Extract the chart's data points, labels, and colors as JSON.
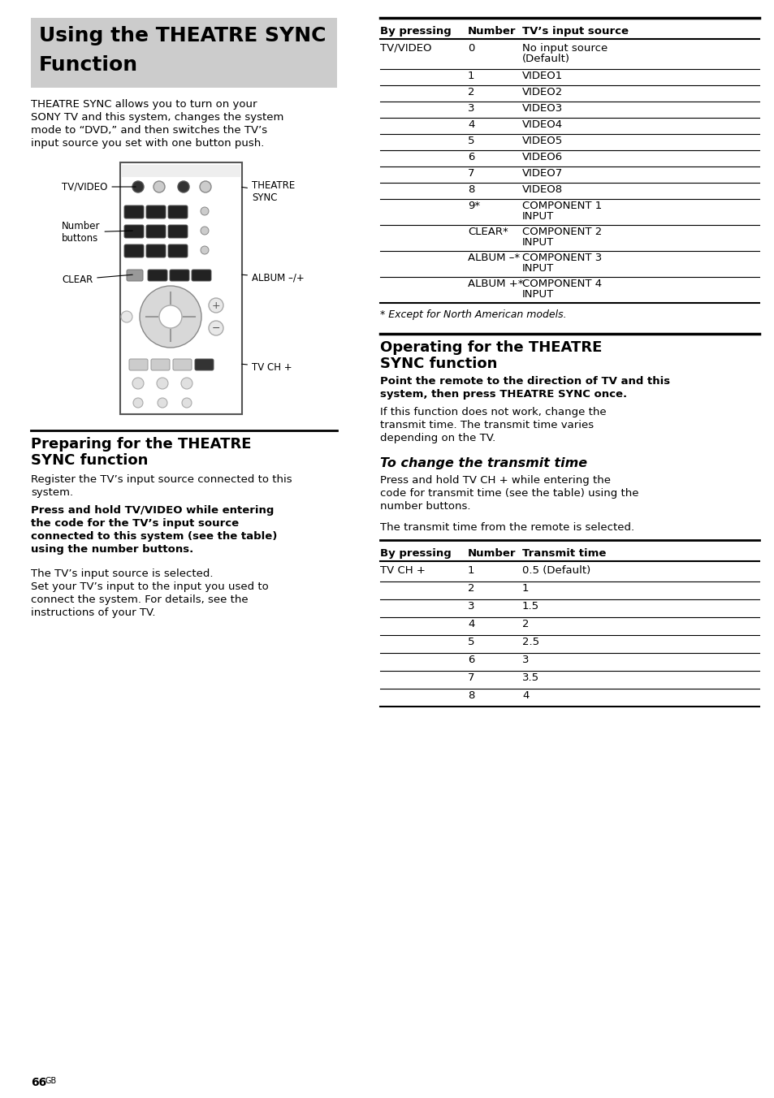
{
  "page_bg": "#ffffff",
  "title_bg": "#cccccc",
  "page_number": "66",
  "table1_rows": [
    [
      "TV/VIDEO",
      "0",
      "No input source\n(Default)"
    ],
    [
      "",
      "1",
      "VIDEO1"
    ],
    [
      "",
      "2",
      "VIDEO2"
    ],
    [
      "",
      "3",
      "VIDEO3"
    ],
    [
      "",
      "4",
      "VIDEO4"
    ],
    [
      "",
      "5",
      "VIDEO5"
    ],
    [
      "",
      "6",
      "VIDEO6"
    ],
    [
      "",
      "7",
      "VIDEO7"
    ],
    [
      "",
      "8",
      "VIDEO8"
    ],
    [
      "",
      "9*",
      "COMPONENT 1\nINPUT"
    ],
    [
      "",
      "CLEAR*",
      "COMPONENT 2\nINPUT"
    ],
    [
      "",
      "ALBUM –*",
      "COMPONENT 3\nINPUT"
    ],
    [
      "",
      "ALBUM +*",
      "COMPONENT 4\nINPUT"
    ]
  ],
  "table1_footnote": "* Except for North American models.",
  "table2_rows": [
    [
      "TV CH +",
      "1",
      "0.5 (Default)"
    ],
    [
      "",
      "2",
      "1"
    ],
    [
      "",
      "3",
      "1.5"
    ],
    [
      "",
      "4",
      "2"
    ],
    [
      "",
      "5",
      "2.5"
    ],
    [
      "",
      "6",
      "3"
    ],
    [
      "",
      "7",
      "3.5"
    ],
    [
      "",
      "8",
      "4"
    ]
  ]
}
